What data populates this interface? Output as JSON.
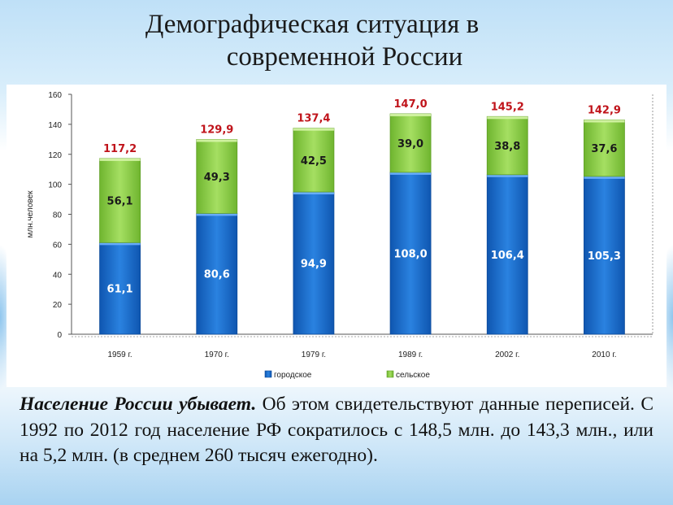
{
  "title": {
    "line1": "Демографическая ситуация в",
    "line2": "современной России"
  },
  "chart_data": {
    "type": "bar",
    "stacked": true,
    "ylabel": "млн.человек",
    "ylim": [
      0,
      160
    ],
    "yticks": [
      0,
      20,
      40,
      60,
      80,
      100,
      120,
      140,
      160
    ],
    "categories": [
      "1959 г.",
      "1970 г.",
      "1979 г.",
      "1989 г.",
      "2002 г.",
      "2010 г."
    ],
    "series": [
      {
        "name": "городское",
        "color": "#1a6fd0",
        "values": [
          61.1,
          80.6,
          94.9,
          108.0,
          106.4,
          105.3
        ],
        "labels": [
          "61,1",
          "80,6",
          "94,9",
          "108,0",
          "106,4",
          "105,3"
        ]
      },
      {
        "name": "сельское",
        "color": "#8fd04a",
        "values": [
          56.1,
          49.3,
          42.5,
          39.0,
          38.8,
          37.6
        ],
        "labels": [
          "56,1",
          "49,3",
          "42,5",
          "39,0",
          "38,8",
          "37,6"
        ]
      }
    ],
    "totals": [
      117.2,
      129.9,
      137.4,
      147.0,
      145.2,
      142.9
    ],
    "total_labels": [
      "117,2",
      "129,9",
      "137,4",
      "147,0",
      "145,2",
      "142,9"
    ],
    "legend_position": "bottom"
  },
  "caption": {
    "lead": "Население России убывает.",
    "text": " Об этом свидетельствуют данные переписей. С 1992 по 2012 год население РФ сократилось с 148,5 млн. до 143,3 млн., или на 5,2 млн. (в среднем 260 тысяч ежегодно)."
  }
}
